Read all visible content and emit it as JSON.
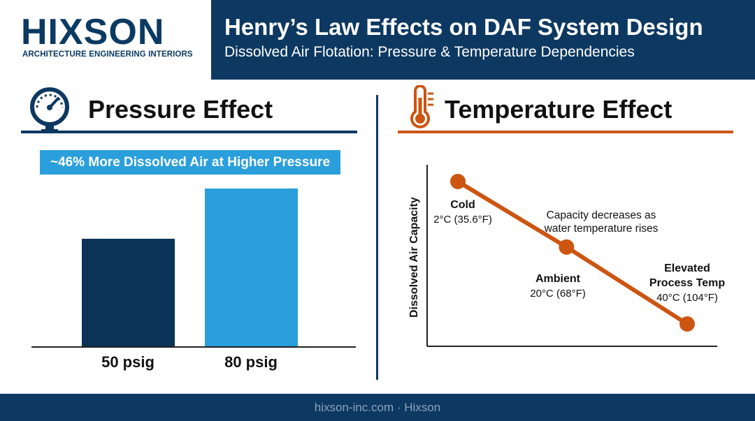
{
  "brand": {
    "name": "HIXSON",
    "tagline": "ARCHITECTURE ENGINEERING INTERIORS"
  },
  "header": {
    "title": "Henry’s Law Effects on DAF System Design",
    "subtitle": "Dissolved Air Flotation: Pressure & Temperature Dependencies"
  },
  "pressure": {
    "heading": "Pressure Effect",
    "icon": "pressure-gauge-icon",
    "callout": "~46% More Dissolved Air at Higher Pressure"
  },
  "temperature": {
    "heading": "Temperature Effect",
    "icon": "thermometer-icon",
    "annotation_line1": "Capacity decreases as",
    "annotation_line2": "water temperature rises"
  },
  "colors": {
    "navy": "#0d3861",
    "blue": "#2a9fdb",
    "orange": "#cc5512",
    "dark_bar": "#0b3358"
  },
  "chart_data": [
    {
      "type": "bar",
      "categories": [
        "50 psig",
        "80 psig"
      ],
      "values": [
        0.68,
        1.0
      ],
      "title": "",
      "xlabel": "",
      "ylabel": "",
      "note": "Relative bar heights; higher pressure bar ~46% taller"
    },
    {
      "type": "line",
      "ylabel": "Dissolved Air Capacity",
      "points": [
        {
          "name": "Cold",
          "temp": "2°C (35.6°F)",
          "x": 2,
          "y": 1.0
        },
        {
          "name": "Ambient",
          "temp": "20°C (68°F)",
          "x": 20,
          "y": 0.54
        },
        {
          "name": "Elevated\nProcess Temp",
          "name_line1": "Elevated",
          "name_line2": "Process Temp",
          "temp": "40°C (104°F)",
          "x": 40,
          "y": 0.0
        }
      ],
      "grid": false
    }
  ],
  "footer": {
    "text": "hixson-inc.com · Hixson"
  }
}
